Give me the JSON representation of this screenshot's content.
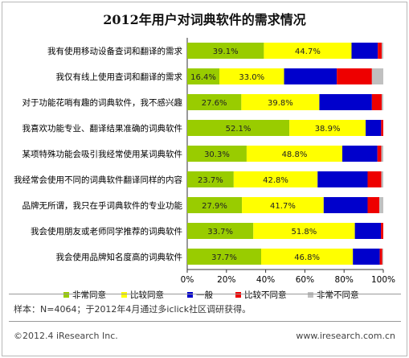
{
  "title": "2012年用户对词典软件的需求情况",
  "chart_data": {
    "type": "bar",
    "orientation": "horizontal",
    "stacked": true,
    "percent_stacked": true,
    "categories": [
      "我有使用移动设备查词和翻译的需求",
      "我仅有线上使用查词和翻译的需求",
      "对于功能花哨有趣的词典软件，我不感兴趣",
      "我喜欢功能专业、翻译结果准确的词典软件",
      "某项特殊功能会吸引我经常使用某词典软件",
      "我经常会使用不同的词典软件翻译同样的内容",
      "品牌无所谓，我只在乎词典软件的专业功能",
      "我会使用朋友或老师同学推荐的词典软件",
      "我会使用品牌知名度高的词典软件"
    ],
    "series": [
      {
        "name": "非常同意",
        "color": "#99cc00",
        "values": [
          39.1,
          16.4,
          27.6,
          52.1,
          30.3,
          23.7,
          27.9,
          33.7,
          37.7
        ]
      },
      {
        "name": "比较同意",
        "color": "#ffff00",
        "values": [
          44.7,
          33.0,
          39.8,
          38.9,
          48.8,
          42.8,
          41.7,
          51.8,
          46.8
        ]
      },
      {
        "name": "一般",
        "color": "#0000cc",
        "values": [
          13.4,
          26.9,
          26.8,
          7.9,
          17.9,
          25.5,
          22.4,
          13.3,
          13.7
        ]
      },
      {
        "name": "比较不同意",
        "color": "#ee0000",
        "values": [
          2.0,
          17.9,
          5.0,
          1.1,
          2.0,
          7.0,
          6.0,
          1.2,
          1.3
        ]
      },
      {
        "name": "非常不同意",
        "color": "#c0c0c0",
        "values": [
          0.8,
          5.8,
          0.8,
          0.0,
          1.0,
          1.0,
          2.0,
          0.0,
          0.5
        ]
      }
    ],
    "labeled_series": [
      "非常同意",
      "比较同意"
    ],
    "xlim": [
      0,
      100
    ],
    "x_ticks": [
      "0%",
      "20%",
      "40%",
      "60%",
      "80%",
      "100%"
    ],
    "legend_position": "bottom",
    "grid": false
  },
  "sample_note": "样本：N=4064；于2012年4月通过多iclick社区调研获得。",
  "copyright": "©2012.4 iResearch Inc.",
  "website": "www.iresearch.com.cn"
}
